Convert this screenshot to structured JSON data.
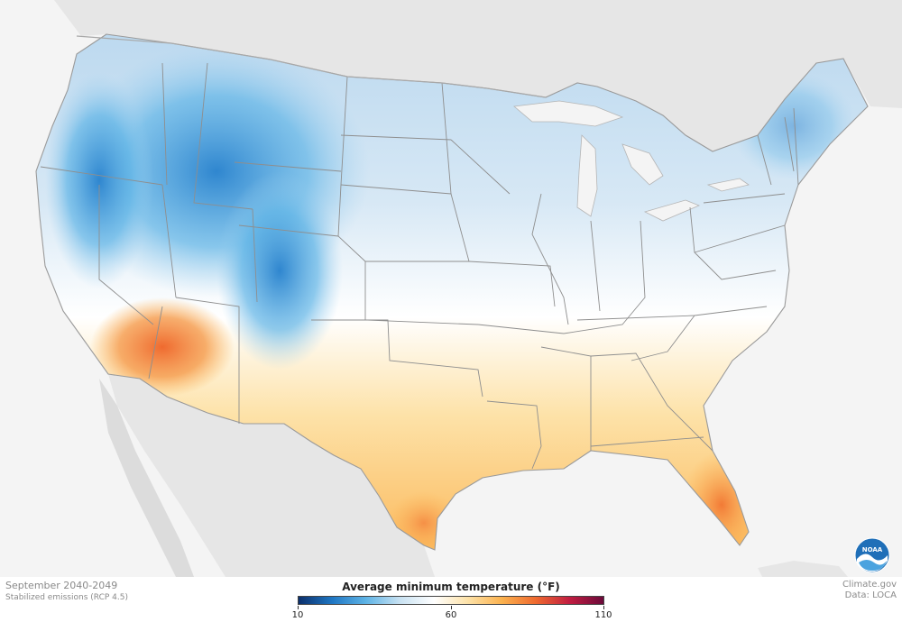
{
  "legend": {
    "title": "Average minimum temperature  (°F)",
    "min": 10,
    "mid": 60,
    "max": 110,
    "tick_labels": [
      "10",
      "60",
      "110"
    ],
    "colors": [
      "#0b2f6b",
      "#1f77c4",
      "#5fb4e6",
      "#c9e2f2",
      "#ffffff",
      "#fde2a8",
      "#fbb24f",
      "#ef6a2f",
      "#c11d41",
      "#6b0a3a"
    ]
  },
  "footer": {
    "period": "September 2040-2049",
    "scenario": "Stabilized emissions (RCP 4.5)",
    "credit": "Climate.gov",
    "data_source": "Data: LOCA"
  },
  "logo": {
    "text": "NOAA"
  },
  "map": {
    "region": "Contiguous United States",
    "background_land_color": "#e6e6e6",
    "water_color": "#f4f4f4",
    "border_color": "#8e8e8e"
  }
}
